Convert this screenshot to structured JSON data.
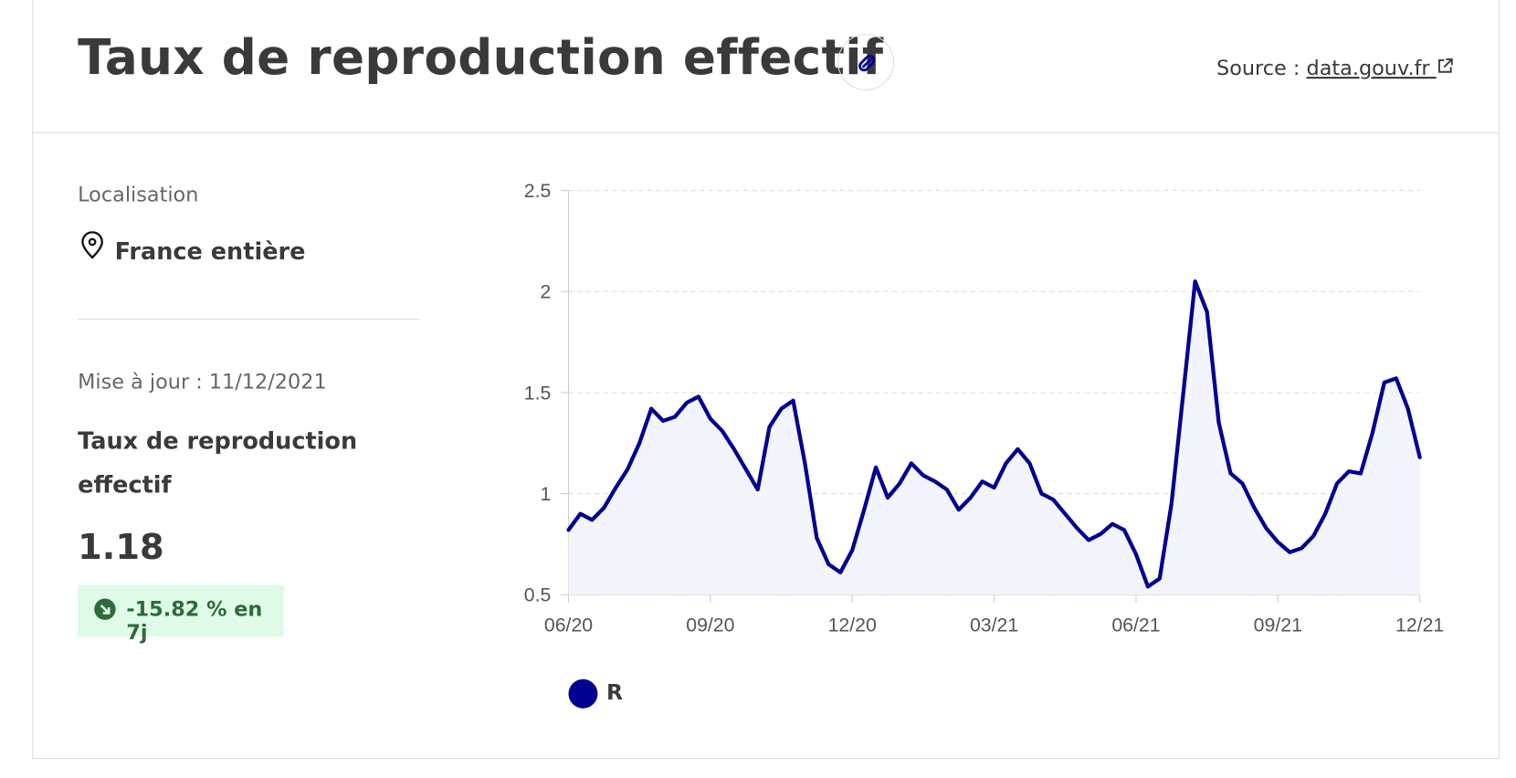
{
  "header": {
    "title": "Taux de reproduction effectif",
    "source_label": "Source :",
    "source_link": "data.gouv.fr"
  },
  "sidebar": {
    "location_label": "Localisation",
    "location": "France entière",
    "updated": "Mise à jour : 11/12/2021",
    "indicator_label": "Taux de reproduction effectif",
    "value": "1.18",
    "change": "-15.82 % en 7j"
  },
  "chart_data": {
    "type": "line",
    "x": [
      0,
      0.25,
      0.5,
      0.75,
      1,
      1.25,
      1.5,
      1.75,
      2,
      2.25,
      2.5,
      2.75,
      3,
      3.25,
      3.5,
      3.75,
      4,
      4.25,
      4.5,
      4.75,
      5,
      5.25,
      5.5,
      5.75,
      6,
      6.25,
      6.5,
      6.75,
      7,
      7.25,
      7.5,
      7.75,
      8,
      8.25,
      8.5,
      8.75,
      9,
      9.25,
      9.5,
      9.75,
      10,
      10.25,
      10.5,
      10.75,
      11,
      11.25,
      11.5,
      11.75,
      12,
      12.25,
      12.5,
      12.75,
      13,
      13.25,
      13.5,
      13.75,
      14,
      14.25,
      14.5,
      14.75,
      15,
      15.25,
      15.5,
      15.75,
      16,
      16.25,
      16.5,
      16.75,
      17,
      17.25,
      17.5,
      17.75,
      18
    ],
    "series": [
      {
        "name": "R",
        "color": "#000091",
        "area_color": "#f4f4fd",
        "values": [
          0.82,
          0.9,
          0.87,
          0.93,
          1.03,
          1.12,
          1.25,
          1.42,
          1.36,
          1.38,
          1.45,
          1.48,
          1.37,
          1.31,
          1.22,
          1.12,
          1.02,
          1.33,
          1.42,
          1.46,
          1.15,
          0.78,
          0.65,
          0.61,
          0.72,
          0.92,
          1.13,
          0.98,
          1.05,
          1.15,
          1.09,
          1.06,
          1.02,
          0.92,
          0.98,
          1.06,
          1.03,
          1.15,
          1.22,
          1.15,
          1.0,
          0.97,
          0.9,
          0.83,
          0.77,
          0.8,
          0.85,
          0.82,
          0.7,
          0.54,
          0.58,
          0.95,
          1.5,
          2.05,
          1.9,
          1.35,
          1.1,
          1.05,
          0.93,
          0.83,
          0.76,
          0.71,
          0.73,
          0.79,
          0.9,
          1.05,
          1.11,
          1.1,
          1.3,
          1.55,
          1.57,
          1.42,
          1.18
        ]
      }
    ],
    "xlim": [
      0,
      18
    ],
    "xticks": [
      {
        "value": 0,
        "label": "06/20"
      },
      {
        "value": 3,
        "label": "09/20"
      },
      {
        "value": 6,
        "label": "12/20"
      },
      {
        "value": 9,
        "label": "03/21"
      },
      {
        "value": 12,
        "label": "06/21"
      },
      {
        "value": 15,
        "label": "09/21"
      },
      {
        "value": 18,
        "label": "12/21"
      }
    ],
    "ylim": [
      0.5,
      2.5
    ],
    "yticks": [
      0.5,
      1,
      1.5,
      2,
      2.5
    ],
    "grid": true
  }
}
